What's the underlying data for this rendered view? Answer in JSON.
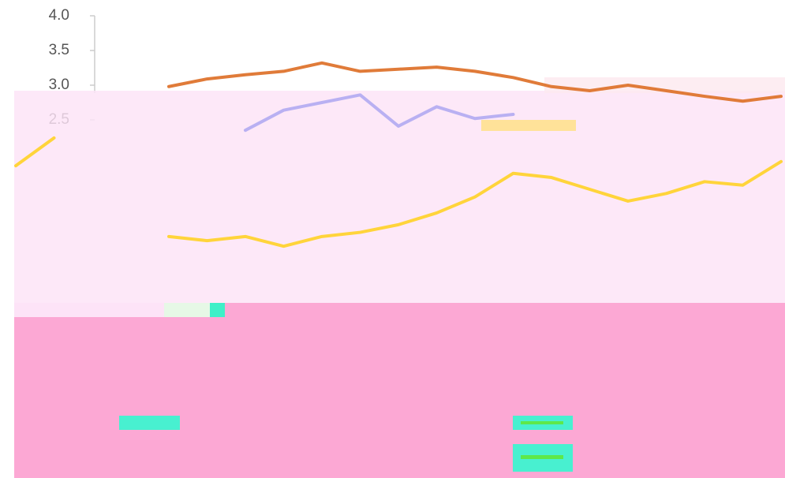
{
  "chart_data": {
    "type": "line",
    "x": [
      0,
      5,
      10,
      15,
      20,
      25,
      30,
      35,
      40,
      45,
      50,
      55,
      60,
      65,
      70,
      75,
      80,
      85,
      90,
      95,
      100
    ],
    "xlim": [
      0,
      100
    ],
    "ylim": [
      0,
      4
    ],
    "yticks": [
      {
        "value": 2.5,
        "label": "2.5"
      },
      {
        "value": 3,
        "label": "3.0"
      },
      {
        "value": 3.5,
        "label": "3.5"
      },
      {
        "value": 4,
        "label": "4.0"
      }
    ],
    "series": [
      {
        "color": "#e07b39",
        "values": [
          null,
          null,
          null,
          null,
          2.98,
          3.09,
          3.15,
          3.2,
          3.32,
          3.2,
          3.23,
          3.26,
          3.2,
          3.11,
          2.98,
          2.92,
          3.0,
          2.92,
          2.84,
          2.77,
          2.84
        ]
      },
      {
        "color": "#b9b0f2",
        "values": [
          null,
          null,
          null,
          null,
          null,
          null,
          2.35,
          2.64,
          2.75,
          2.86,
          2.41,
          2.69,
          2.52,
          2.58,
          null,
          null,
          null,
          null,
          null,
          null,
          null
        ]
      },
      {
        "color": "#ffd43b",
        "values": [
          1.84,
          2.24,
          null,
          null,
          0.82,
          0.76,
          0.82,
          0.68,
          0.82,
          0.88,
          0.99,
          1.16,
          1.39,
          1.73,
          1.67,
          1.5,
          1.33,
          1.44,
          1.61,
          1.56,
          1.9
        ]
      }
    ]
  }
}
